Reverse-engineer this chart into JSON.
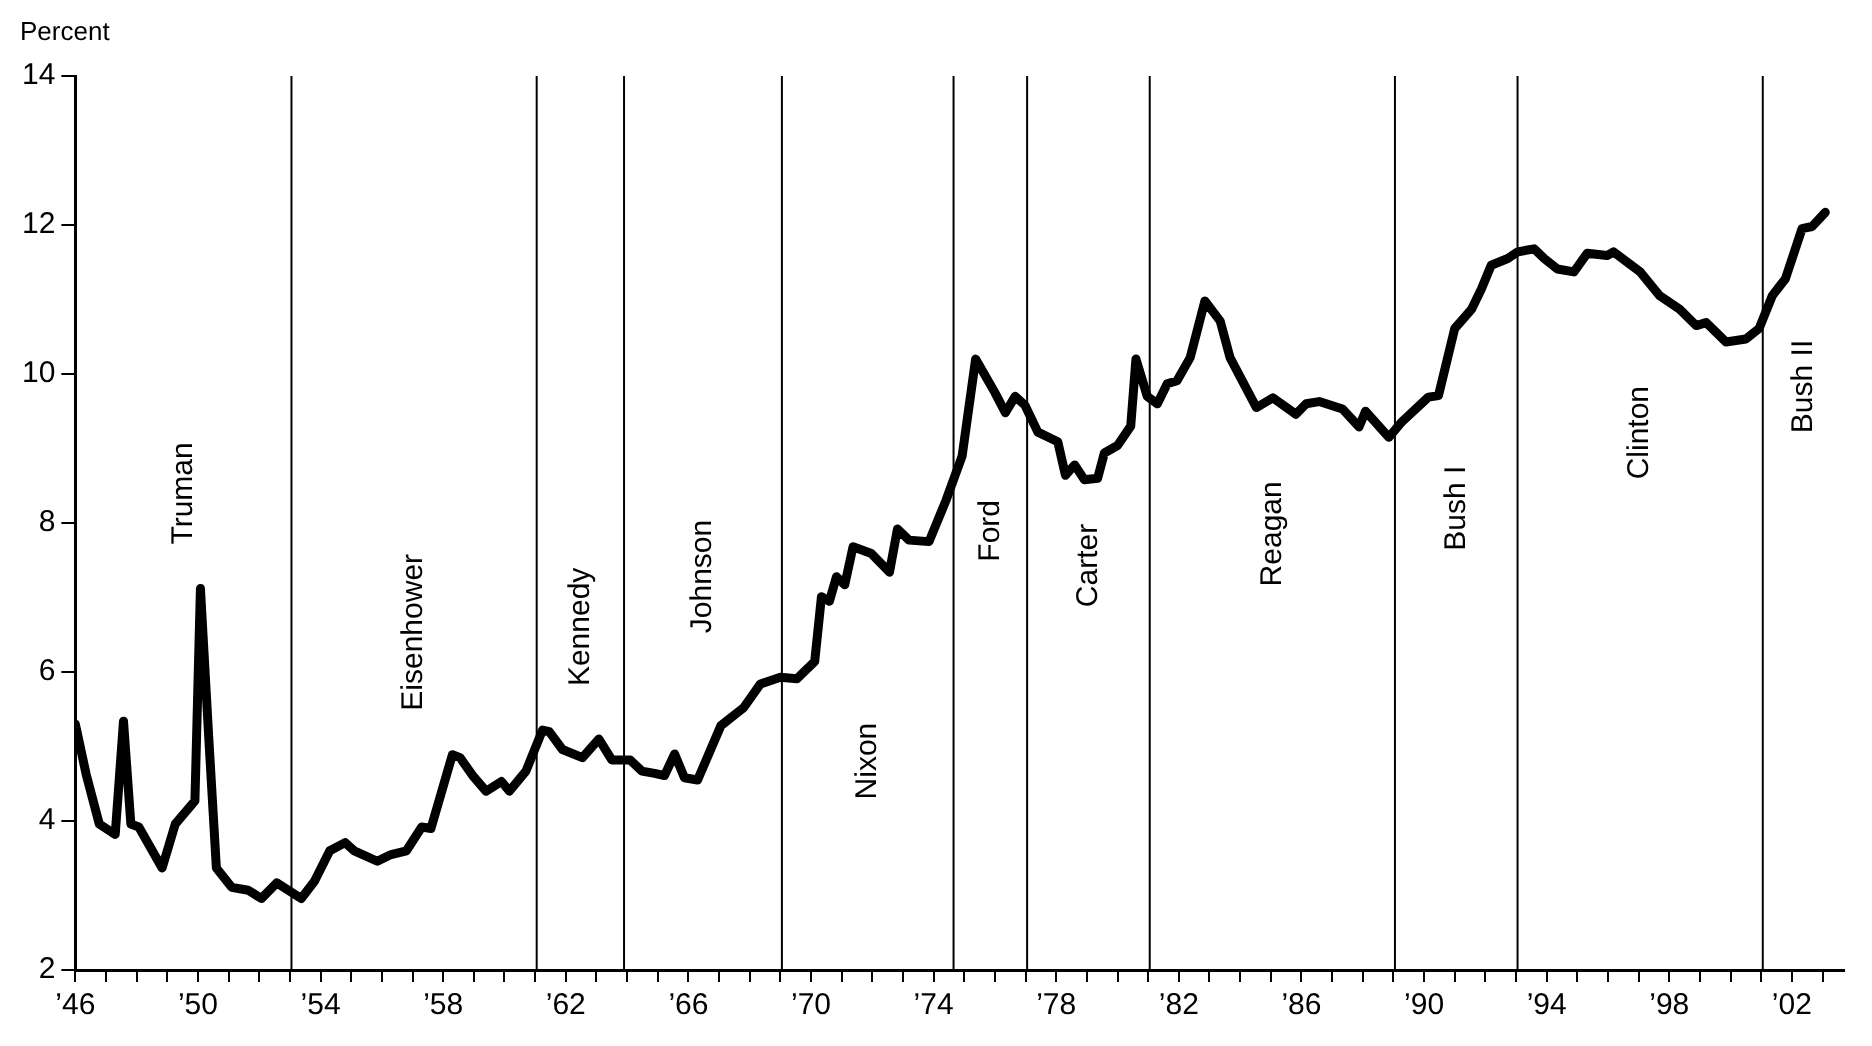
{
  "chart_data": {
    "type": "line",
    "ylabel": "Percent",
    "xlim": [
      1946,
      2003.7
    ],
    "ylim": [
      2,
      14
    ],
    "yticks": [
      2,
      4,
      6,
      8,
      10,
      12,
      14
    ],
    "xticks": [
      {
        "value": 1946,
        "label": "’46"
      },
      {
        "value": 1947,
        "label": null
      },
      {
        "value": 1948,
        "label": null
      },
      {
        "value": 1949,
        "label": null
      },
      {
        "value": 1950,
        "label": "’50"
      },
      {
        "value": 1951,
        "label": null
      },
      {
        "value": 1952,
        "label": null
      },
      {
        "value": 1953,
        "label": null
      },
      {
        "value": 1954,
        "label": "’54"
      },
      {
        "value": 1955,
        "label": null
      },
      {
        "value": 1956,
        "label": null
      },
      {
        "value": 1957,
        "label": null
      },
      {
        "value": 1958,
        "label": "’58"
      },
      {
        "value": 1959,
        "label": null
      },
      {
        "value": 1960,
        "label": null
      },
      {
        "value": 1961,
        "label": null
      },
      {
        "value": 1962,
        "label": "’62"
      },
      {
        "value": 1963,
        "label": null
      },
      {
        "value": 1964,
        "label": null
      },
      {
        "value": 1965,
        "label": null
      },
      {
        "value": 1966,
        "label": "’66"
      },
      {
        "value": 1967,
        "label": null
      },
      {
        "value": 1968,
        "label": null
      },
      {
        "value": 1969,
        "label": null
      },
      {
        "value": 1970,
        "label": "’70"
      },
      {
        "value": 1971,
        "label": null
      },
      {
        "value": 1972,
        "label": null
      },
      {
        "value": 1973,
        "label": null
      },
      {
        "value": 1974,
        "label": "’74"
      },
      {
        "value": 1975,
        "label": null
      },
      {
        "value": 1976,
        "label": null
      },
      {
        "value": 1977,
        "label": null
      },
      {
        "value": 1978,
        "label": "’78"
      },
      {
        "value": 1979,
        "label": null
      },
      {
        "value": 1980,
        "label": null
      },
      {
        "value": 1981,
        "label": null
      },
      {
        "value": 1982,
        "label": "’82"
      },
      {
        "value": 1983,
        "label": null
      },
      {
        "value": 1984,
        "label": null
      },
      {
        "value": 1985,
        "label": null
      },
      {
        "value": 1986,
        "label": "’86"
      },
      {
        "value": 1987,
        "label": null
      },
      {
        "value": 1988,
        "label": null
      },
      {
        "value": 1989,
        "label": null
      },
      {
        "value": 1990,
        "label": "’90"
      },
      {
        "value": 1991,
        "label": null
      },
      {
        "value": 1992,
        "label": null
      },
      {
        "value": 1993,
        "label": null
      },
      {
        "value": 1994,
        "label": "’94"
      },
      {
        "value": 1995,
        "label": null
      },
      {
        "value": 1996,
        "label": null
      },
      {
        "value": 1997,
        "label": null
      },
      {
        "value": 1998,
        "label": "’98"
      },
      {
        "value": 1999,
        "label": null
      },
      {
        "value": 2000,
        "label": null
      },
      {
        "value": 2001,
        "label": null
      },
      {
        "value": 2002,
        "label": "’02"
      },
      {
        "value": 2003,
        "label": null
      }
    ],
    "grid": false,
    "legend": false,
    "marker": "none",
    "line_style": "solid",
    "x": [
      1946.0,
      1946.35,
      1946.78,
      1947.3,
      1947.57,
      1947.81,
      1948.07,
      1948.83,
      1949.26,
      1949.9,
      1950.08,
      1950.34,
      1950.6,
      1951.1,
      1951.64,
      1952.07,
      1952.57,
      1953.37,
      1953.8,
      1954.3,
      1954.8,
      1955.1,
      1955.85,
      1956.3,
      1956.8,
      1957.3,
      1957.6,
      1958.3,
      1958.55,
      1958.98,
      1959.4,
      1959.9,
      1960.16,
      1960.7,
      1961.24,
      1961.46,
      1961.89,
      1962.54,
      1963.08,
      1963.5,
      1964.1,
      1964.48,
      1964.9,
      1965.22,
      1965.55,
      1965.87,
      1966.3,
      1967.06,
      1967.8,
      1968.35,
      1969.0,
      1969.54,
      1970.12,
      1970.34,
      1970.6,
      1970.83,
      1971.1,
      1971.37,
      1971.97,
      1972.56,
      1972.82,
      1973.2,
      1973.85,
      1974.4,
      1974.93,
      1975.37,
      1976.0,
      1976.34,
      1976.66,
      1976.98,
      1977.4,
      1978.05,
      1978.3,
      1978.6,
      1978.92,
      1979.35,
      1979.57,
      1980.0,
      1980.43,
      1980.6,
      1980.97,
      1981.3,
      1981.62,
      1981.94,
      1982.37,
      1982.85,
      1983.35,
      1983.67,
      1984.53,
      1985.07,
      1985.82,
      1986.15,
      1986.58,
      1987.34,
      1987.88,
      1988.09,
      1988.85,
      1989.28,
      1990.14,
      1990.47,
      1991.0,
      1991.55,
      1991.87,
      1992.19,
      1992.73,
      1993.06,
      1993.59,
      1993.92,
      1994.35,
      1994.89,
      1995.32,
      1995.97,
      1996.18,
      1997.05,
      1997.69,
      1998.34,
      1998.88,
      1999.2,
      1999.85,
      2000.5,
      2000.93,
      2001.36,
      2001.79,
      2002.33,
      2002.66,
      2003.09
    ],
    "series": [
      {
        "color": "#000000",
        "values": [
          5.3,
          4.63,
          3.96,
          3.82,
          5.34,
          3.96,
          3.92,
          3.37,
          3.96,
          4.27,
          7.12,
          5.2,
          3.37,
          3.11,
          3.07,
          2.96,
          3.17,
          2.96,
          3.19,
          3.6,
          3.71,
          3.6,
          3.46,
          3.55,
          3.6,
          3.92,
          3.9,
          4.89,
          4.85,
          4.6,
          4.4,
          4.53,
          4.4,
          4.67,
          5.22,
          5.2,
          4.96,
          4.85,
          5.1,
          4.82,
          4.82,
          4.67,
          4.64,
          4.61,
          4.9,
          4.58,
          4.55,
          5.28,
          5.52,
          5.84,
          5.93,
          5.91,
          6.14,
          7.01,
          6.95,
          7.28,
          7.17,
          7.68,
          7.59,
          7.34,
          7.92,
          7.77,
          7.75,
          8.3,
          8.9,
          10.2,
          9.75,
          9.48,
          9.7,
          9.58,
          9.22,
          9.09,
          8.64,
          8.78,
          8.58,
          8.6,
          8.94,
          9.04,
          9.3,
          10.2,
          9.7,
          9.6,
          9.87,
          9.91,
          10.22,
          10.98,
          10.71,
          10.22,
          9.55,
          9.68,
          9.46,
          9.6,
          9.63,
          9.53,
          9.29,
          9.5,
          9.15,
          9.36,
          9.69,
          9.71,
          10.61,
          10.87,
          11.14,
          11.46,
          11.55,
          11.64,
          11.68,
          11.55,
          11.41,
          11.37,
          11.62,
          11.59,
          11.64,
          11.37,
          11.05,
          10.87,
          10.65,
          10.69,
          10.43,
          10.47,
          10.61,
          11.05,
          11.28,
          11.95,
          11.98,
          12.17
        ]
      }
    ],
    "ref_lines": [
      {
        "axis": "x",
        "value": 1953.05
      },
      {
        "axis": "x",
        "value": 1961.05
      },
      {
        "axis": "x",
        "value": 1963.9
      },
      {
        "axis": "x",
        "value": 1969.05
      },
      {
        "axis": "x",
        "value": 1974.65
      },
      {
        "axis": "x",
        "value": 1977.05
      },
      {
        "axis": "x",
        "value": 1981.05
      },
      {
        "axis": "x",
        "value": 1989.05
      },
      {
        "axis": "x",
        "value": 1993.05
      },
      {
        "axis": "x",
        "value": 2001.05
      }
    ],
    "annotations": [
      "Truman",
      "Eisenhower",
      "Kennedy",
      "Johnson",
      "Nixon",
      "Ford",
      "Carter",
      "Reagan",
      "Bush I",
      "Clinton",
      "Bush II"
    ]
  }
}
